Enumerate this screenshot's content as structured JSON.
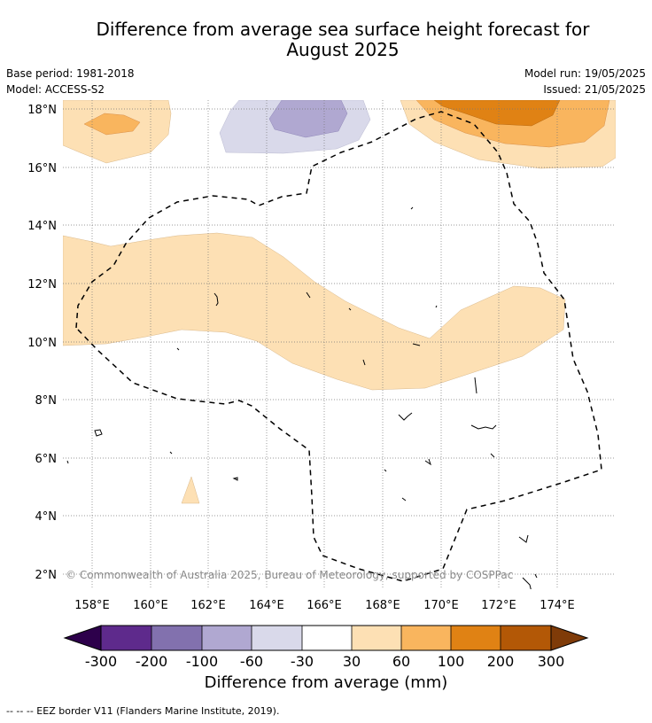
{
  "header": {
    "title_line1": "Difference from average sea surface height forecast for",
    "title_line2": "August 2025",
    "base_period": "Base period: 1981-2018",
    "model": "Model: ACCESS-S2",
    "model_run": "Model run: 19/05/2025",
    "issued": "Issued: 21/05/2025"
  },
  "map": {
    "lat_labels": [
      "18°N",
      "16°N",
      "14°N",
      "12°N",
      "10°N",
      "8°N",
      "6°N",
      "4°N",
      "2°N"
    ],
    "lon_labels": [
      "158°E",
      "160°E",
      "162°E",
      "164°E",
      "166°E",
      "168°E",
      "170°E",
      "172°E",
      "174°E"
    ],
    "copyright": "© Commonwealth of Australia 2025, Bureau of Meteorology, supported by COSPPac"
  },
  "colorbar": {
    "title": "Difference from average (mm)",
    "tick_labels": [
      "-300",
      "-200",
      "-100",
      "-60",
      "-30",
      "30",
      "60",
      "100",
      "200",
      "300"
    ],
    "colors": [
      "#5e2a8c",
      "#8271ae",
      "#b0a8d1",
      "#d9d9ea",
      "#ffffff",
      "#fde0b4",
      "#f9b55e",
      "#e08214",
      "#b35806"
    ],
    "extend_low_color": "#2d004b",
    "extend_high_color": "#7f3b08"
  },
  "footnote": "--  --  -- EEZ border V11 (Flanders Marine Institute, 2019)."
}
